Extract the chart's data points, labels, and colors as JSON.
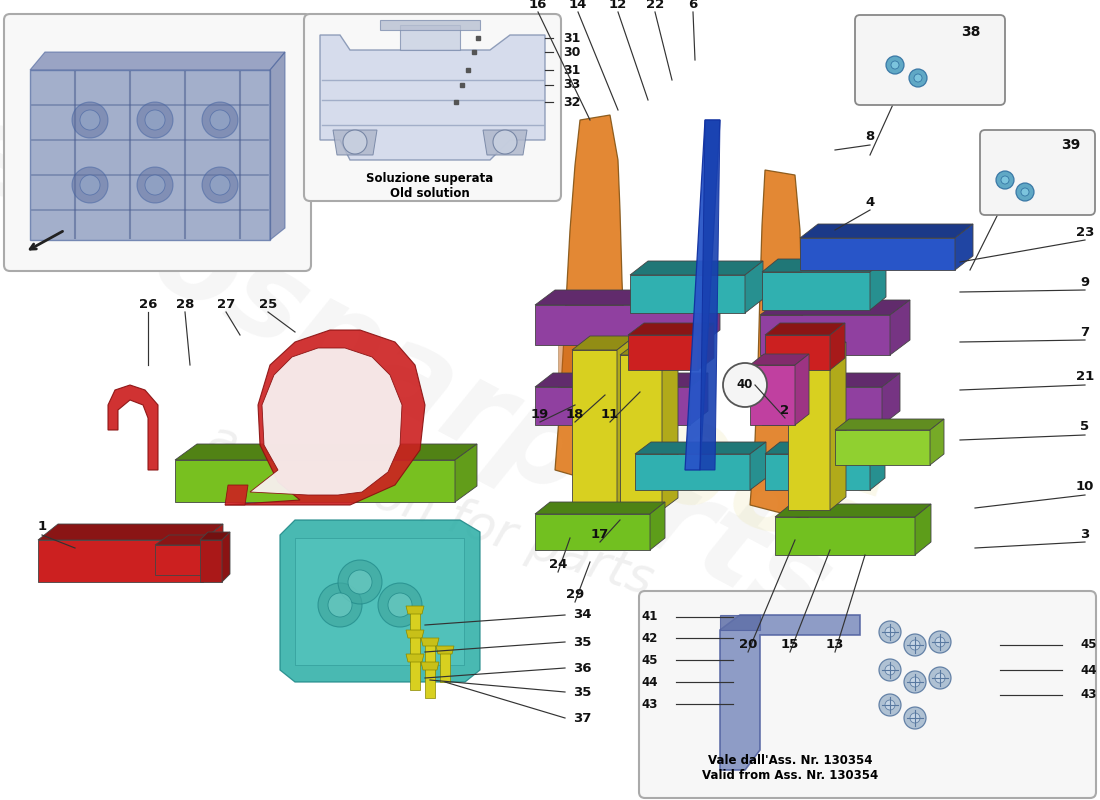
{
  "bg_color": "#ffffff",
  "watermark1": "eurosparparts",
  "watermark2": "1985",
  "watermark3": "a passion for parts",
  "old_solution_text": "Soluzione superata\nOld solution",
  "bottom_inset_text": "Vale dall'Ass. Nr. 130354\nValid from Ass. Nr. 130354",
  "label_fontsize": 9.5,
  "label_color": "#111111",
  "line_color": "#333333",
  "inset_bg": "#f7f7f7",
  "inset_ec": "#aaaaaa"
}
